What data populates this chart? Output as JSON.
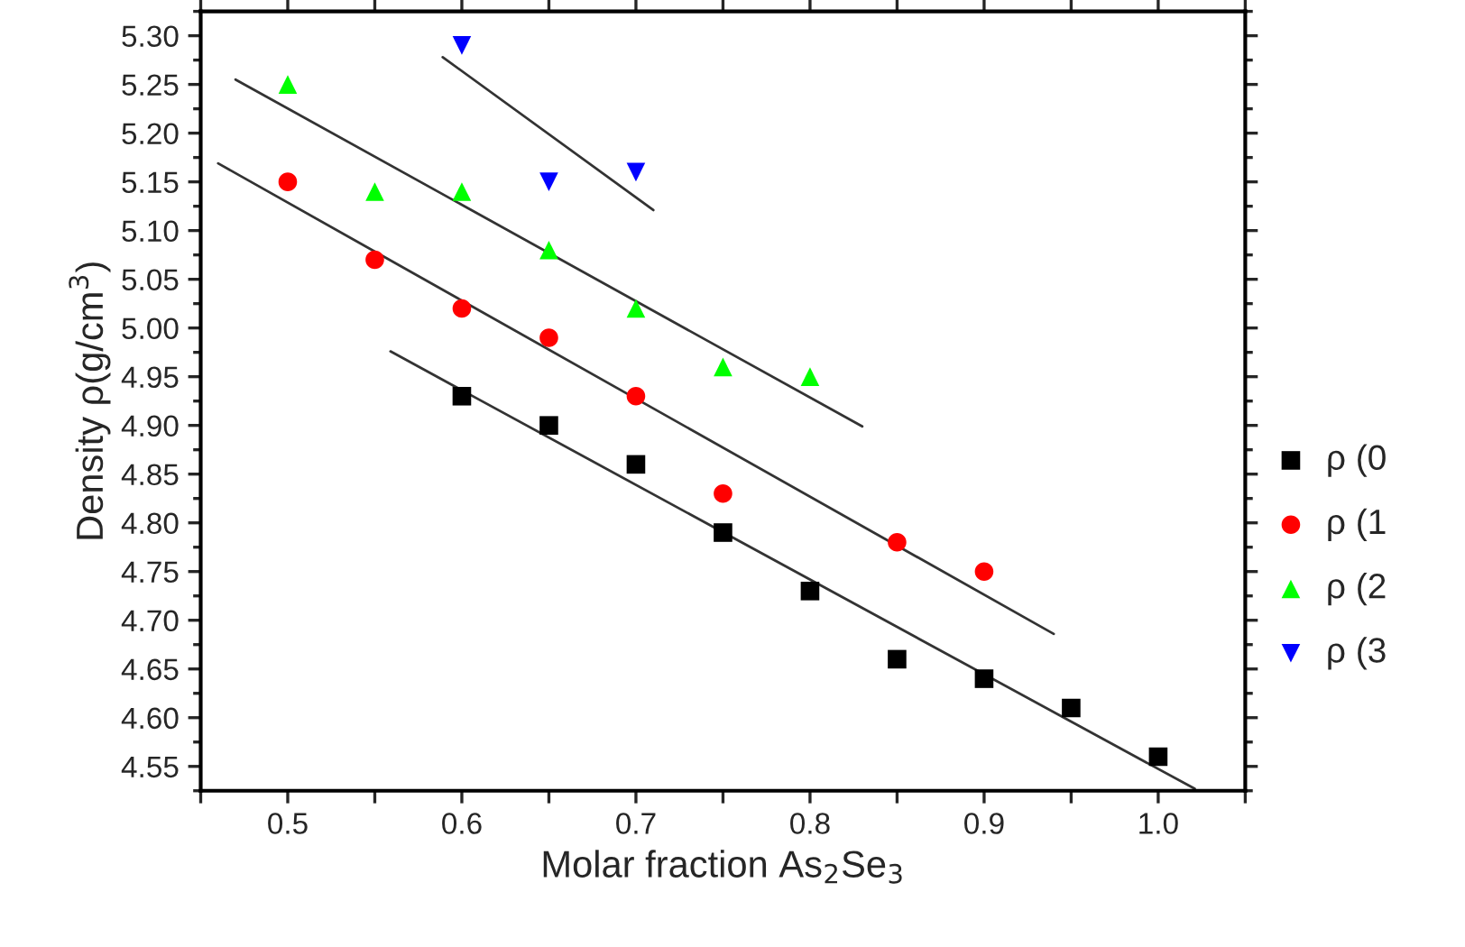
{
  "chart_data": {
    "type": "scatter",
    "xlabel": "Molar fraction As$_{2}$Se$_{3}$",
    "ylabel": "Density ρ(g/cm$^{3}$)",
    "xlim": [
      0.45,
      1.05
    ],
    "ylim": [
      4.525,
      5.325
    ],
    "xticks": [
      {
        "value": 0.45,
        "label": null
      },
      0.5,
      {
        "value": 0.55,
        "label": null
      },
      0.6,
      {
        "value": 0.65,
        "label": null
      },
      0.7,
      {
        "value": 0.75,
        "label": null
      },
      0.8,
      {
        "value": 0.85,
        "label": null
      },
      0.9,
      {
        "value": 0.95,
        "label": null
      },
      {
        "value": 1.0,
        "label": "1.0"
      },
      {
        "value": 1.05,
        "label": null
      }
    ],
    "yticks": [
      {
        "value": 4.55,
        "label": "4.55"
      },
      {
        "value": 4.6,
        "label": "4.60"
      },
      {
        "value": 4.65,
        "label": "4.65"
      },
      {
        "value": 4.7,
        "label": "4.70"
      },
      {
        "value": 4.75,
        "label": "4.75"
      },
      {
        "value": 4.8,
        "label": "4.80"
      },
      {
        "value": 4.85,
        "label": "4.85"
      },
      {
        "value": 4.9,
        "label": "4.90"
      },
      {
        "value": 4.95,
        "label": "4.95"
      },
      {
        "value": 5.0,
        "label": "5.00"
      },
      {
        "value": 5.05,
        "label": "5.05"
      },
      {
        "value": 5.1,
        "label": "5.10"
      },
      {
        "value": 5.15,
        "label": "5.15"
      },
      {
        "value": 5.2,
        "label": "5.20"
      },
      {
        "value": 5.25,
        "label": "5.25"
      },
      {
        "value": 5.3,
        "label": "5.30"
      }
    ],
    "grid": false,
    "legend": "right",
    "series": [
      {
        "name": "ρ (0",
        "color": "#000000",
        "marker": "square",
        "x": [
          0.6,
          0.65,
          0.7,
          0.75,
          0.8,
          0.85,
          0.9,
          0.95,
          1.0
        ],
        "values": [
          4.93,
          4.9,
          4.86,
          4.79,
          4.73,
          4.66,
          4.64,
          4.61,
          4.56
        ]
      },
      {
        "name": "ρ (1",
        "color": "#ff0000",
        "marker": "circle",
        "x": [
          0.5,
          0.55,
          0.6,
          0.65,
          0.7,
          0.75,
          0.85,
          0.9
        ],
        "values": [
          5.15,
          5.07,
          5.02,
          4.99,
          4.93,
          4.83,
          4.78,
          4.75
        ]
      },
      {
        "name": "ρ (2",
        "color": "#00ff00",
        "marker": "triangle",
        "x": [
          0.5,
          0.55,
          0.6,
          0.65,
          0.7,
          0.75,
          0.8
        ],
        "values": [
          5.25,
          5.14,
          5.14,
          5.08,
          5.02,
          4.96,
          4.95
        ]
      },
      {
        "name": "ρ (3",
        "color": "#0000ff",
        "marker": "triangle_down",
        "x": [
          0.6,
          0.65,
          0.7
        ],
        "values": [
          5.29,
          5.15,
          5.16
        ]
      },
      {
        "type": "line",
        "color": "#333333",
        "marker": "none",
        "x": [
          0.559,
          1.021
        ],
        "values": [
          4.976,
          4.527
        ]
      },
      {
        "type": "line",
        "color": "#333333",
        "marker": "none",
        "x": [
          0.46,
          0.94
        ],
        "values": [
          5.169,
          4.686
        ]
      },
      {
        "type": "line",
        "color": "#333333",
        "marker": "none",
        "x": [
          0.47,
          0.83
        ],
        "values": [
          5.255,
          4.899
        ]
      },
      {
        "type": "line",
        "color": "#333333",
        "marker": "none",
        "x": [
          0.589,
          0.71
        ],
        "values": [
          5.278,
          5.121
        ]
      }
    ]
  }
}
